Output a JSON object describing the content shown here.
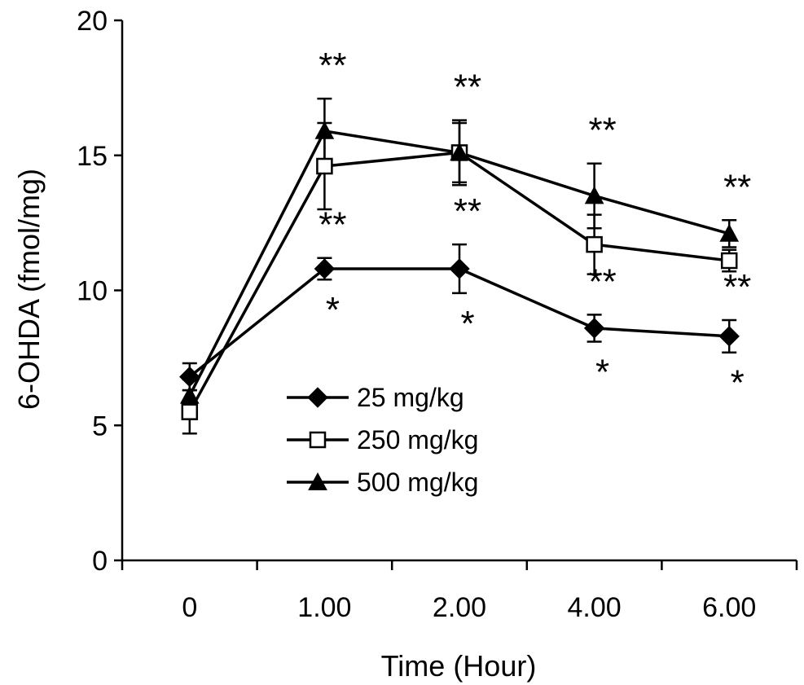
{
  "chart_data": {
    "type": "line",
    "xlabel": "Time (Hour)",
    "ylabel": "6-OHDA (fmol/mg)",
    "categories": [
      "0",
      "1.00",
      "2.00",
      "4.00",
      "6.00"
    ],
    "ylim": [
      0,
      20
    ],
    "yticks": [
      "0",
      "5",
      "10",
      "15",
      "20"
    ],
    "grid": false,
    "legend_position": "lower-center",
    "series": [
      {
        "name": "25 mg/kg",
        "marker": "filled-diamond",
        "values": [
          6.8,
          10.8,
          10.8,
          8.6,
          8.3
        ],
        "errors": [
          0.5,
          0.4,
          0.9,
          0.5,
          0.6
        ]
      },
      {
        "name": "250 mg/kg",
        "marker": "open-square",
        "values": [
          5.5,
          14.6,
          15.1,
          11.7,
          11.1
        ],
        "errors": [
          0.8,
          1.6,
          1.1,
          1.1,
          0.4
        ]
      },
      {
        "name": "500 mg/kg",
        "marker": "filled-triangle",
        "values": [
          6.1,
          15.9,
          15.1,
          13.5,
          12.1
        ],
        "errors": [
          0.6,
          1.2,
          1.2,
          1.2,
          0.5
        ]
      }
    ],
    "annotations": [
      {
        "x": "1.00",
        "series": "500 mg/kg",
        "side": "above",
        "text": "**"
      },
      {
        "x": "2.00",
        "series": "500 mg/kg",
        "side": "above",
        "text": "**"
      },
      {
        "x": "4.00",
        "series": "500 mg/kg",
        "side": "above",
        "text": "**"
      },
      {
        "x": "6.00",
        "series": "500 mg/kg",
        "side": "above",
        "text": "**"
      },
      {
        "x": "1.00",
        "series": "25 mg/kg",
        "side": "above",
        "text": "**"
      },
      {
        "x": "2.00",
        "series": "25 mg/kg",
        "side": "above",
        "text": "**"
      },
      {
        "x": "4.00",
        "series": "25 mg/kg",
        "side": "above",
        "text": "**"
      },
      {
        "x": "6.00",
        "series": "25 mg/kg",
        "side": "above",
        "text": "**"
      },
      {
        "x": "1.00",
        "series": "25 mg/kg",
        "side": "below",
        "text": "*"
      },
      {
        "x": "2.00",
        "series": "25 mg/kg",
        "side": "below",
        "text": "*"
      },
      {
        "x": "4.00",
        "series": "25 mg/kg",
        "side": "below",
        "text": "*"
      },
      {
        "x": "6.00",
        "series": "25 mg/kg",
        "side": "below",
        "text": "*"
      }
    ]
  }
}
